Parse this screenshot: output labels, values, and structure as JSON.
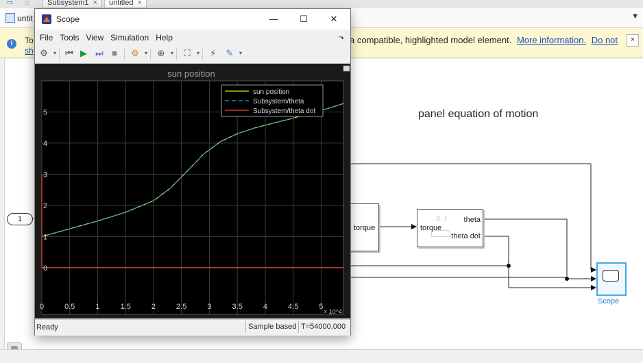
{
  "simulink": {
    "tabs": [
      {
        "label": "Subsystem1",
        "close": "×"
      },
      {
        "label": "untitled",
        "close": "×"
      }
    ],
    "address": {
      "model": "untit",
      "dropdown": "▼"
    },
    "info_bar": {
      "left_text": "To",
      "left_link": "sh",
      "text": "a compatible, highlighted model element.",
      "link1": "More information.",
      "link2": "Do not",
      "close": "×"
    },
    "canvas": {
      "title": "panel equation of motion",
      "inport_label": "1",
      "partial_block_port": "torque",
      "eom_block": {
        "in_port": "torque",
        "out1": "theta",
        "out2": "theta dot",
        "glyph": "∫∫·∙∫"
      },
      "scope_label": "Scope"
    }
  },
  "scope_window": {
    "title": "Scope",
    "window_buttons": {
      "minimize": "—",
      "maximize": "☐",
      "close": "✕"
    },
    "menu": [
      "File",
      "Tools",
      "View",
      "Simulation",
      "Help"
    ],
    "dock_icon": "⬎",
    "status": {
      "state": "Ready",
      "mode": "Sample based",
      "time": "T=54000.000"
    }
  },
  "chart_data": {
    "type": "line",
    "title": "sun position",
    "xlabel": "",
    "ylabel": "",
    "x_multiplier": "× 10^4",
    "xlim": [
      0,
      5.4
    ],
    "ylim": [
      -1.5,
      6.0
    ],
    "xticks": [
      0,
      0.5,
      1,
      1.5,
      2,
      2.5,
      3,
      3.5,
      4,
      4.5,
      5
    ],
    "yticks": [
      0,
      1,
      2,
      3,
      4,
      5
    ],
    "grid": true,
    "legend_position": "top-right",
    "series": [
      {
        "name": "sun position",
        "color": "#e4e400",
        "style": "solid",
        "x": [
          0,
          0.5,
          1,
          1.5,
          2,
          2.3,
          2.6,
          2.9,
          3.2,
          3.5,
          3.8,
          4.1,
          4.5,
          4.8,
          5.1,
          5.4
        ],
        "y": [
          1.0,
          1.25,
          1.5,
          1.78,
          2.15,
          2.55,
          3.1,
          3.65,
          4.05,
          4.3,
          4.48,
          4.62,
          4.8,
          4.95,
          5.1,
          5.27
        ]
      },
      {
        "name": "Subsystem/theta",
        "color": "#1e9be8",
        "style": "dashed",
        "x": [
          0,
          0.5,
          1,
          1.5,
          2,
          2.3,
          2.6,
          2.9,
          3.2,
          3.5,
          3.8,
          4.1,
          4.5,
          4.8,
          5.1,
          5.4
        ],
        "y": [
          1.0,
          1.25,
          1.5,
          1.78,
          2.15,
          2.55,
          3.1,
          3.65,
          4.05,
          4.3,
          4.48,
          4.62,
          4.8,
          4.95,
          5.1,
          5.27
        ]
      },
      {
        "name": "Subsystem/theta dot",
        "color": "#e8503a",
        "style": "solid",
        "x": [
          0,
          0,
          0.005,
          5.4
        ],
        "y": [
          3.0,
          0.0,
          0.0,
          0.0
        ]
      }
    ]
  }
}
